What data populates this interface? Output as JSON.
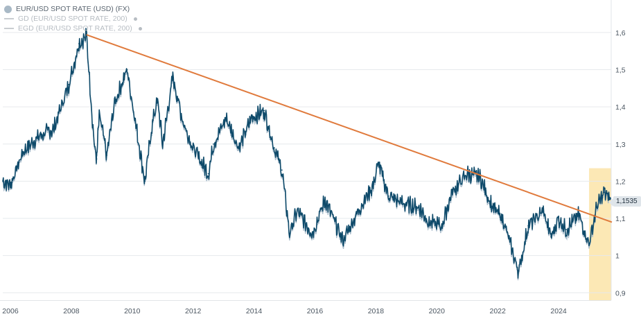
{
  "legend": {
    "main": "EUR/USD SPOT RATE (USD) (FX)",
    "gd": "GD (EUR/USD SPOT RATE, 200)",
    "egd": "EGD (EUR/USD SPOT RATE, 200)"
  },
  "current_value_label": "1,1535",
  "chart_data": {
    "type": "line",
    "title": "",
    "xlabel": "",
    "ylabel": "",
    "x_ticks": [
      "2006",
      "2008",
      "2010",
      "2012",
      "2014",
      "2016",
      "2018",
      "2020",
      "2022",
      "2024"
    ],
    "y_ticks": [
      "0,9",
      "1",
      "1,1",
      "1,2",
      "1,3",
      "1,4",
      "1,5",
      "1,6"
    ],
    "xlim": [
      "2005-10",
      "2025-10"
    ],
    "ylim": [
      0.88,
      1.68
    ],
    "grid": true,
    "legend_position": "top-left",
    "series": [
      {
        "name": "EUR/USD SPOT RATE (USD) (FX)",
        "color": "#0e4a6a",
        "points": [
          [
            "2005-10",
            1.2
          ],
          [
            "2006-01",
            1.19
          ],
          [
            "2006-06",
            1.28
          ],
          [
            "2006-12",
            1.32
          ],
          [
            "2007-06",
            1.34
          ],
          [
            "2007-12",
            1.46
          ],
          [
            "2008-04",
            1.57
          ],
          [
            "2008-07",
            1.59
          ],
          [
            "2008-10",
            1.3
          ],
          [
            "2008-11",
            1.26
          ],
          [
            "2008-12",
            1.38
          ],
          [
            "2009-03",
            1.27
          ],
          [
            "2009-06",
            1.41
          ],
          [
            "2009-11",
            1.5
          ],
          [
            "2010-02",
            1.37
          ],
          [
            "2010-06",
            1.2
          ],
          [
            "2010-09",
            1.36
          ],
          [
            "2010-11",
            1.42
          ],
          [
            "2011-01",
            1.3
          ],
          [
            "2011-05",
            1.48
          ],
          [
            "2011-09",
            1.36
          ],
          [
            "2012-01",
            1.29
          ],
          [
            "2012-07",
            1.22
          ],
          [
            "2012-09",
            1.3
          ],
          [
            "2013-02",
            1.37
          ],
          [
            "2013-07",
            1.29
          ],
          [
            "2013-12",
            1.37
          ],
          [
            "2014-05",
            1.39
          ],
          [
            "2014-09",
            1.29
          ],
          [
            "2014-12",
            1.23
          ],
          [
            "2015-03",
            1.06
          ],
          [
            "2015-06",
            1.12
          ],
          [
            "2015-12",
            1.06
          ],
          [
            "2016-05",
            1.15
          ],
          [
            "2016-12",
            1.04
          ],
          [
            "2017-06",
            1.12
          ],
          [
            "2017-12",
            1.19
          ],
          [
            "2018-02",
            1.25
          ],
          [
            "2018-06",
            1.16
          ],
          [
            "2018-12",
            1.14
          ],
          [
            "2019-06",
            1.13
          ],
          [
            "2019-10",
            1.09
          ],
          [
            "2020-03",
            1.08
          ],
          [
            "2020-07",
            1.17
          ],
          [
            "2021-01",
            1.22
          ],
          [
            "2021-06",
            1.21
          ],
          [
            "2021-11",
            1.13
          ],
          [
            "2022-03",
            1.1
          ],
          [
            "2022-09",
            0.96
          ],
          [
            "2022-10",
            0.98
          ],
          [
            "2023-01",
            1.08
          ],
          [
            "2023-07",
            1.12
          ],
          [
            "2023-10",
            1.05
          ],
          [
            "2024-01",
            1.1
          ],
          [
            "2024-04",
            1.07
          ],
          [
            "2024-09",
            1.11
          ],
          [
            "2025-01",
            1.03
          ],
          [
            "2025-04",
            1.13
          ],
          [
            "2025-07",
            1.17
          ],
          [
            "2025-09",
            1.1535
          ]
        ]
      },
      {
        "name": "trend line",
        "color": "#e07a3c",
        "points": [
          [
            "2008-07",
            1.594
          ],
          [
            "2025-10",
            1.09
          ]
        ]
      }
    ],
    "highlight": {
      "from": "2025-01",
      "to": "2025-10",
      "color": "#fbe4a8"
    },
    "last_value": 1.1535
  }
}
